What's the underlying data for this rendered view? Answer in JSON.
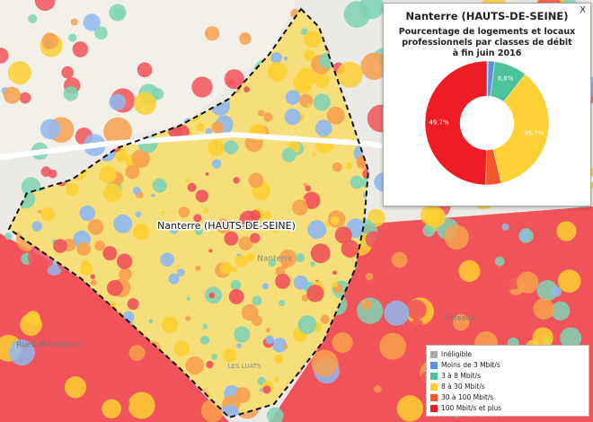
{
  "map": {
    "place_label": "Nanterre (HAUTS-DE-SEINE)",
    "labels": [
      "Rueil-Malmaison",
      "Puteaux",
      "Nanterre",
      "LES LUATS"
    ]
  },
  "popup": {
    "close": "X",
    "title": "Nanterre (HAUTS-DE-SEINE)"
  },
  "chart_data": {
    "type": "pie",
    "title": [
      "Pourcentage de logements et locaux",
      "professionnels par classes de débit",
      "à fin juin 2016"
    ],
    "categories": [
      "Inéligible",
      "Moins de 3 Mbit/s",
      "3 à 8 Mbit/s",
      "8 à 30 Mbit/s",
      "30 à 100 Mbit/s",
      "100 Mbit/s et plus"
    ],
    "values": [
      0.3,
      1.7,
      8.6,
      35.7,
      4.0,
      49.7
    ],
    "value_labels": [
      null,
      null,
      "8,6%",
      "35,7%",
      null,
      "49,7%"
    ],
    "colors": [
      "#aaaaaa",
      "#5b8ee6",
      "#4cc29a",
      "#fdd033",
      "#f4582a",
      "#ee1c25"
    ],
    "donut": true
  }
}
